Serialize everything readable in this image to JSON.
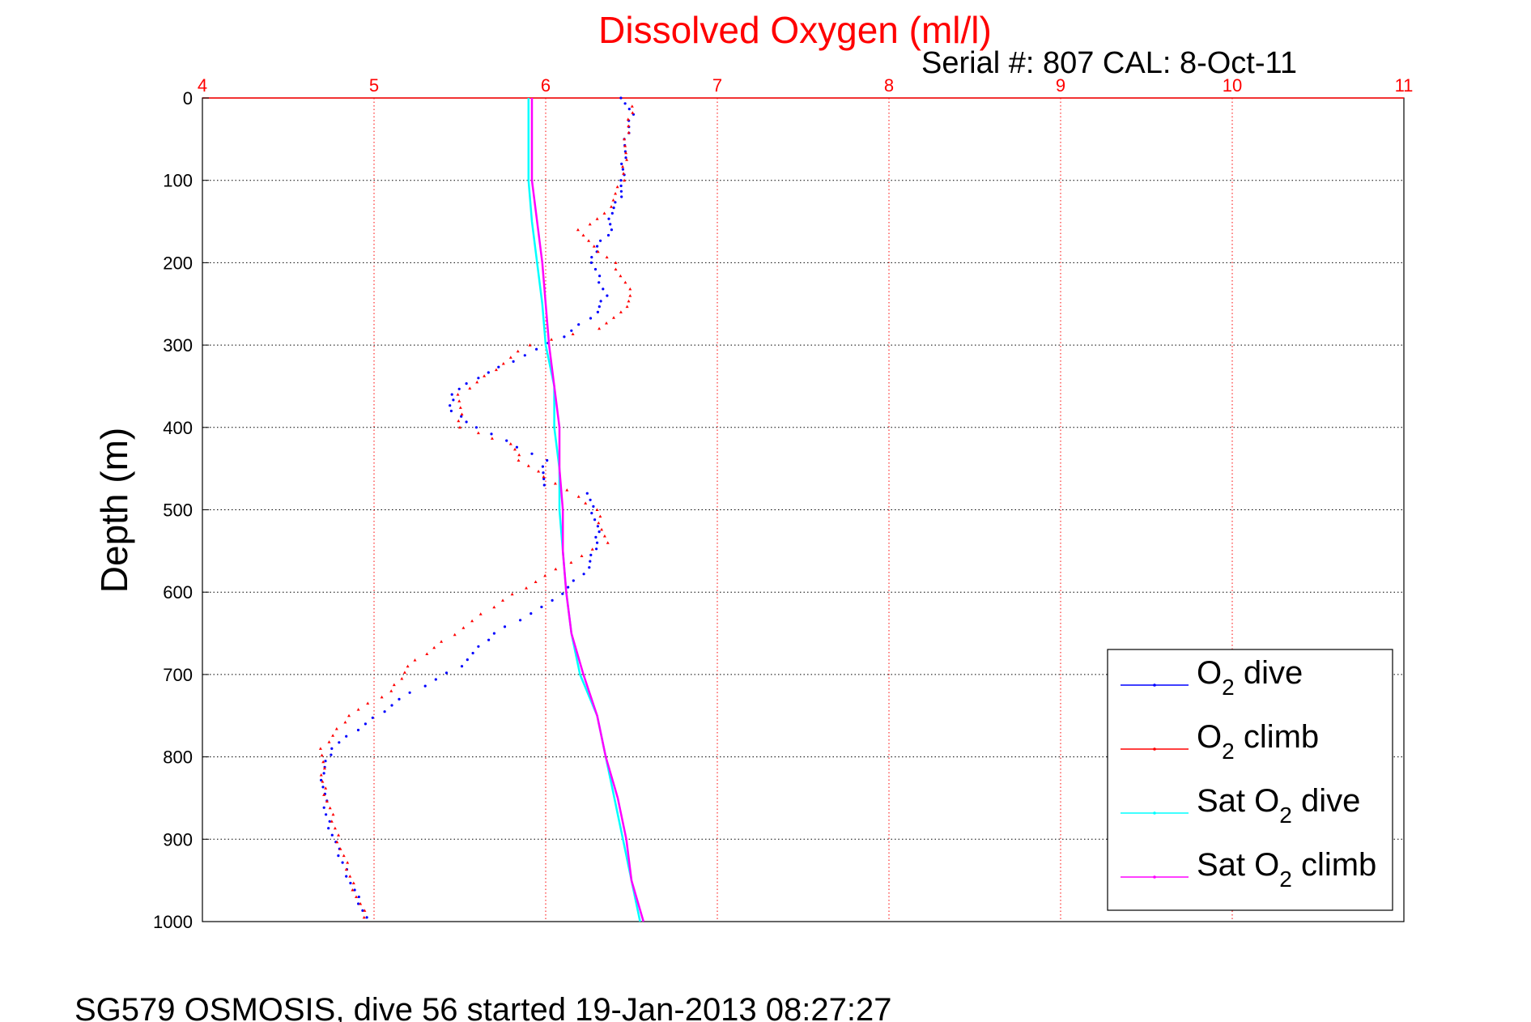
{
  "header": {
    "title": "Dissolved Oxygen (ml/l)",
    "serial_text": "Serial #: 807  CAL: 8-Oct-11"
  },
  "footer": {
    "caption": "SG579 OSMOSIS, dive 56 started 19-Jan-2013 08:27:27"
  },
  "colors": {
    "title": "#ff0000",
    "top_axis": "#ff0000",
    "o2_dive": "#0000ff",
    "o2_climb": "#ff0000",
    "sat_o2_dive": "#00ffff",
    "sat_o2_climb": "#ff00ff"
  },
  "chart_data": {
    "type": "scatter",
    "title": "Dissolved Oxygen (ml/l)",
    "ylabel": "Depth (m)",
    "xlim": [
      4,
      11
    ],
    "ylim": [
      0,
      1000
    ],
    "y_reversed": true,
    "grid": true,
    "x_ticks": [
      4,
      5,
      6,
      7,
      8,
      9,
      10,
      11
    ],
    "y_ticks": [
      0,
      100,
      200,
      300,
      400,
      500,
      600,
      700,
      800,
      900,
      1000
    ],
    "legend_position": "bottom-right",
    "series": [
      {
        "name": "O2 dive",
        "legend": {
          "pre": "O",
          "sub": "2",
          "post": " dive"
        },
        "style": "dots",
        "color": "#0000ff",
        "points": [
          [
            6.45,
            0
          ],
          [
            6.5,
            20
          ],
          [
            6.47,
            50
          ],
          [
            6.45,
            80
          ],
          [
            6.45,
            100
          ],
          [
            6.43,
            120
          ],
          [
            6.38,
            140
          ],
          [
            6.38,
            160
          ],
          [
            6.3,
            180
          ],
          [
            6.27,
            200
          ],
          [
            6.35,
            240
          ],
          [
            6.3,
            260
          ],
          [
            6.1,
            290
          ],
          [
            5.8,
            320
          ],
          [
            5.6,
            340
          ],
          [
            5.45,
            360
          ],
          [
            5.45,
            380
          ],
          [
            5.6,
            400
          ],
          [
            6.0,
            440
          ],
          [
            5.98,
            470
          ],
          [
            6.25,
            480
          ],
          [
            6.3,
            520
          ],
          [
            6.3,
            540
          ],
          [
            6.25,
            570
          ],
          [
            6.05,
            610
          ],
          [
            5.7,
            650
          ],
          [
            5.5,
            690
          ],
          [
            5.15,
            730
          ],
          [
            4.95,
            760
          ],
          [
            4.75,
            790
          ],
          [
            4.7,
            820
          ],
          [
            4.72,
            870
          ],
          [
            4.8,
            920
          ],
          [
            4.9,
            970
          ],
          [
            4.95,
            995
          ]
        ]
      },
      {
        "name": "O2 climb",
        "legend": {
          "pre": "O",
          "sub": "2",
          "post": " climb"
        },
        "style": "triangles",
        "color": "#ff0000",
        "points": [
          [
            6.5,
            10
          ],
          [
            6.47,
            50
          ],
          [
            6.45,
            100
          ],
          [
            6.35,
            140
          ],
          [
            6.2,
            160
          ],
          [
            6.27,
            180
          ],
          [
            6.4,
            200
          ],
          [
            6.5,
            240
          ],
          [
            6.45,
            260
          ],
          [
            6.3,
            280
          ],
          [
            5.9,
            300
          ],
          [
            5.7,
            330
          ],
          [
            5.5,
            360
          ],
          [
            5.5,
            400
          ],
          [
            5.8,
            420
          ],
          [
            5.85,
            440
          ],
          [
            6.0,
            460
          ],
          [
            6.3,
            500
          ],
          [
            6.35,
            540
          ],
          [
            6.0,
            580
          ],
          [
            5.75,
            610
          ],
          [
            5.4,
            660
          ],
          [
            5.2,
            690
          ],
          [
            5.1,
            720
          ],
          [
            4.85,
            750
          ],
          [
            4.7,
            790
          ],
          [
            4.7,
            830
          ],
          [
            4.75,
            870
          ],
          [
            4.82,
            920
          ],
          [
            4.9,
            970
          ],
          [
            4.95,
            995
          ]
        ]
      },
      {
        "name": "Sat O2 dive",
        "legend": {
          "pre": "Sat O",
          "sub": "2",
          "post": " dive"
        },
        "style": "line",
        "color": "#00ffff",
        "points": [
          [
            5.9,
            0
          ],
          [
            5.9,
            100
          ],
          [
            5.92,
            150
          ],
          [
            5.95,
            200
          ],
          [
            5.98,
            250
          ],
          [
            6.0,
            300
          ],
          [
            6.05,
            350
          ],
          [
            6.05,
            400
          ],
          [
            6.08,
            450
          ],
          [
            6.08,
            500
          ],
          [
            6.1,
            550
          ],
          [
            6.12,
            600
          ],
          [
            6.15,
            650
          ],
          [
            6.2,
            700
          ],
          [
            6.3,
            750
          ],
          [
            6.35,
            800
          ],
          [
            6.4,
            850
          ],
          [
            6.45,
            900
          ],
          [
            6.5,
            950
          ],
          [
            6.55,
            1000
          ]
        ]
      },
      {
        "name": "Sat O2 climb",
        "legend": {
          "pre": "Sat O",
          "sub": "2",
          "post": " climb"
        },
        "style": "line",
        "color": "#ff00ff",
        "points": [
          [
            5.92,
            0
          ],
          [
            5.92,
            100
          ],
          [
            5.95,
            150
          ],
          [
            5.98,
            200
          ],
          [
            6.0,
            250
          ],
          [
            6.02,
            300
          ],
          [
            6.05,
            350
          ],
          [
            6.08,
            400
          ],
          [
            6.08,
            450
          ],
          [
            6.1,
            500
          ],
          [
            6.1,
            550
          ],
          [
            6.12,
            600
          ],
          [
            6.15,
            650
          ],
          [
            6.22,
            700
          ],
          [
            6.3,
            750
          ],
          [
            6.35,
            800
          ],
          [
            6.42,
            850
          ],
          [
            6.47,
            900
          ],
          [
            6.5,
            950
          ],
          [
            6.57,
            1000
          ]
        ]
      }
    ]
  }
}
